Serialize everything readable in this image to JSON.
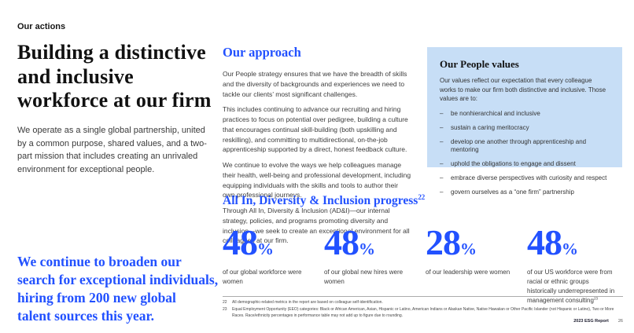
{
  "colors": {
    "accent_blue": "#2251ff",
    "box_blue": "#c7def6",
    "heading_black": "#111111"
  },
  "page": {
    "eyebrow": "Our actions",
    "title": "Building a distinctive\nand inclusive\nworkforce at our firm",
    "intro": "We operate as a single global partnership, united by a common purpose, shared values, and a two-part mission that includes creating an unrivaled environment for exceptional people.",
    "pull_quote": "We continue to broaden our\nsearch for exceptional individuals,\nhiring from 200 new global\ntalent sources this year."
  },
  "approach": {
    "heading": "Our approach",
    "paragraphs": [
      "Our People strategy ensures that we have the breadth of skills and the diversity of backgrounds and experiences we need to tackle our clients’ most significant challenges.",
      "This includes continuing to advance our recruiting and hiring practices to focus on potential over pedigree, building a culture that encourages continual skill-building (both upskilling and reskilling), and committing to multidirectional, on-the-job apprenticeship supported by a direct, honest feedback culture.",
      "We continue to evolve the ways we help colleagues manage their health, well-being and professional development, including equipping individuals with the skills and tools to author their own professional journeys.",
      "Through All In, Diversity & Inclusion (AD&I)—our internal strategy, policies, and programs promoting diversity and inclusion—we seek to create an exceptional environment for all colleagues at our firm."
    ]
  },
  "values_box": {
    "heading": "Our People values",
    "intro": "Our values reflect our expectation that every colleague works to make our firm both distinctive and inclusive. Those values are to:",
    "bullet_marker": "–",
    "items": [
      "be nonhierarchical and inclusive",
      "sustain a caring meritocracy",
      "develop one another through apprenticeship and mentoring",
      "uphold the obligations to engage and dissent",
      "embrace diverse perspectives with curiosity and respect",
      "govern ourselves as a “one firm” partnership"
    ]
  },
  "progress": {
    "heading": "All In, Diversity & Inclusion progress",
    "heading_footnote": "22",
    "stats": [
      {
        "value": "48",
        "unit": "%",
        "label": "of our global workforce were women",
        "footnote": ""
      },
      {
        "value": "48",
        "unit": "%",
        "label": "of our global new hires were women",
        "footnote": ""
      },
      {
        "value": "28",
        "unit": "%",
        "label": "of our leadership were women",
        "footnote": ""
      },
      {
        "value": "48",
        "unit": "%",
        "label": "of our US workforce were from racial or ethnic groups historically underrepresented in management consulting",
        "footnote": "23"
      }
    ]
  },
  "footnotes": [
    {
      "num": "22",
      "text": "All demographic-related metrics in the report are based on colleague self-identification."
    },
    {
      "num": "23",
      "text": "Equal Employment Opportunity (EEO) categories: Black or African American, Asian, Hispanic or Latino, American Indians or Alaskan Native, Native Hawaiian or Other Pacific Islander (not Hispanic or Latino), Two or More Races. Race/ethnicity percentages in performance table may not add up to figure due to rounding."
    }
  ],
  "footer": {
    "report": "2023 ESG Report",
    "page": "26"
  }
}
